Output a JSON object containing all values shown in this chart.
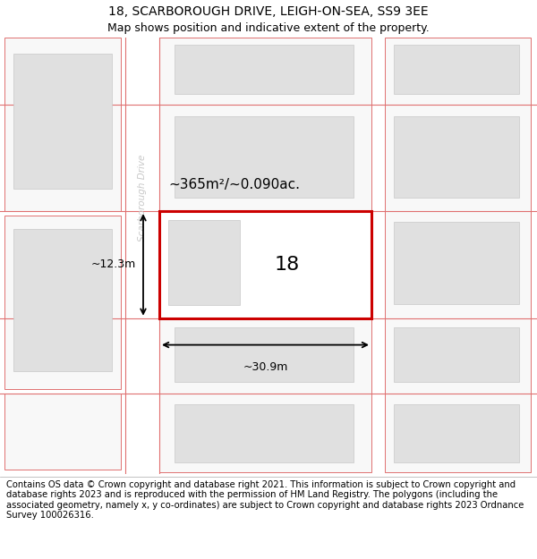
{
  "title": "18, SCARBOROUGH DRIVE, LEIGH-ON-SEA, SS9 3EE",
  "subtitle": "Map shows position and indicative extent of the property.",
  "footer": "Contains OS data © Crown copyright and database right 2021. This information is subject to Crown copyright and database rights 2023 and is reproduced with the permission of HM Land Registry. The polygons (including the associated geometry, namely x, y co-ordinates) are subject to Crown copyright and database rights 2023 Ordnance Survey 100026316.",
  "background_color": "#ffffff",
  "map_bg": "#f0f0f0",
  "road_color": "#ffffff",
  "road_line_color": "#e07070",
  "building_fill": "#e0e0e0",
  "building_edge": "#c8c8c8",
  "highlight_edge": "#cc0000",
  "street_label": "Scarborough Drive",
  "street_label_color": "#c8c8c8",
  "property_number": "18",
  "area_label": "~365m²/~0.090ac.",
  "width_label": "~30.9m",
  "height_label": "~12.3m",
  "title_fontsize": 10,
  "subtitle_fontsize": 9,
  "footer_fontsize": 7.2
}
